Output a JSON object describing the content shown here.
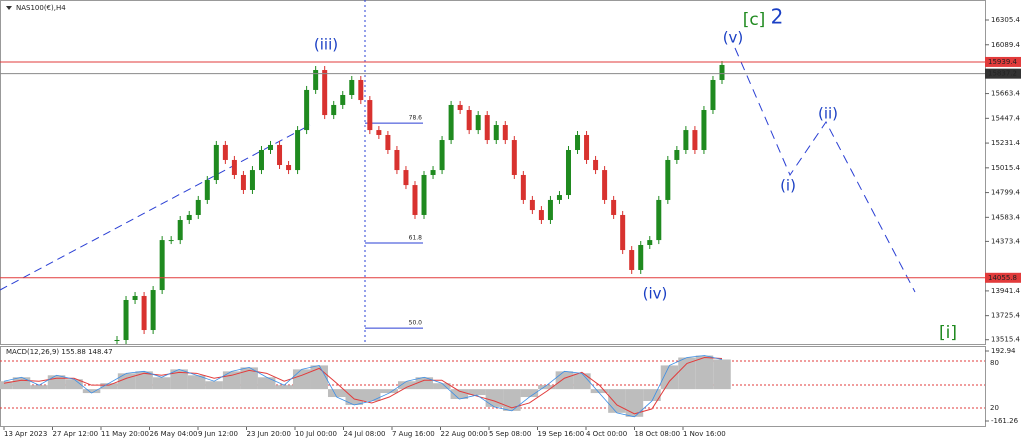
{
  "chart_data": {
    "type": "candlestick",
    "title": "NAS100(€),H4",
    "values": [
      13513,
      13862,
      13897,
      13600,
      13949,
      14385,
      14385,
      14560,
      14604,
      14735,
      14909,
      15215,
      15084,
      14953,
      14822,
      14996,
      15171,
      15215,
      15040,
      14996,
      15345,
      15695,
      15869,
      15476,
      15564,
      15651,
      15782,
      15607,
      15345,
      15302,
      15171,
      14996,
      14865,
      14604,
      14953,
      14996,
      15258,
      15564,
      15520,
      15345,
      15476,
      15258,
      15389,
      15258,
      14953,
      14735,
      14647,
      14560,
      14735,
      14778,
      15171,
      15302,
      15084,
      14996,
      14735,
      14604,
      14298,
      14124,
      14342,
      14385,
      14735,
      15084,
      15171,
      15345,
      15171,
      15520,
      15782,
      15913
    ],
    "up_color": "#1f8a1f",
    "down_color": "#d8322f",
    "ylim": [
      13478,
      16480
    ],
    "yticks": [
      16305.4,
      16089.4,
      15663.4,
      15447.4,
      15231.4,
      15015.4,
      14799.4,
      14583.4,
      14373.4,
      13941.4,
      13725.4,
      13515.4
    ],
    "price_lines": [
      {
        "value": 15939.4,
        "color": "#e23b3b"
      },
      {
        "value": 15837.2,
        "color": "#8a8a8a"
      },
      {
        "value": 14055.8,
        "color": "#e23b3b"
      }
    ],
    "fib": {
      "labels": [
        "78.6",
        "61.8",
        "50.0"
      ],
      "prices": [
        15406,
        14359,
        13617
      ]
    },
    "x_labels": [
      "13 Apr 2023",
      "27 Apr 12:00",
      "11 May 20:00",
      "26 May 04:00",
      "9 Jun 12:00",
      "23 Jun 20:00",
      "10 Jul 00:00",
      "24 Jul 08:00",
      "7 Aug 16:00",
      "22 Aug 00:00",
      "5 Sep 08:00",
      "19 Sep 16:00",
      "4 Oct 00:00",
      "18 Oct 08:00",
      "1 Nov 16:00"
    ],
    "waves": [
      "(iii)",
      "(iv)",
      "(v)",
      "[c]",
      "2",
      "(i)",
      "(ii)",
      "[i]"
    ],
    "macd": {
      "title": "MACD(12,26,9) 155.88 148.47",
      "histogram": [
        40,
        60,
        20,
        70,
        50,
        -20,
        30,
        80,
        90,
        60,
        100,
        70,
        40,
        90,
        110,
        60,
        20,
        100,
        120,
        -40,
        -80,
        -60,
        -20,
        40,
        60,
        30,
        -50,
        -30,
        -90,
        -110,
        -40,
        20,
        90,
        80,
        -20,
        -120,
        -140,
        -60,
        120,
        160,
        170,
        150
      ],
      "signal": [
        30,
        45,
        40,
        55,
        55,
        20,
        20,
        55,
        80,
        70,
        85,
        80,
        55,
        70,
        95,
        80,
        40,
        70,
        105,
        30,
        -50,
        -70,
        -40,
        10,
        45,
        45,
        -10,
        -35,
        -60,
        -95,
        -70,
        -10,
        55,
        85,
        20,
        -80,
        -125,
        -100,
        40,
        130,
        160,
        155
      ],
      "ylim": [
        -186.6,
        213.2
      ],
      "yticks": [
        192.94,
        -161.26
      ],
      "levels": [
        80,
        20
      ]
    }
  }
}
